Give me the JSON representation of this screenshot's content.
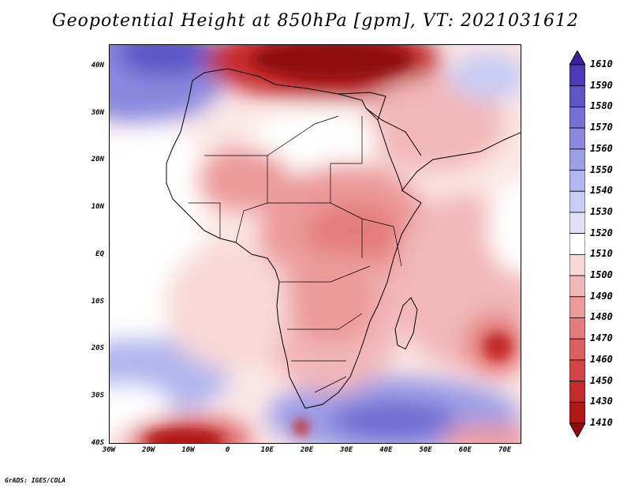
{
  "title": "Geopotential Height at 850hPa [gpm], VT: 2021031612",
  "credit": "GrADS: IGES/COLA",
  "map": {
    "lat_labels": [
      "40N",
      "30N",
      "20N",
      "10N",
      "EQ",
      "10S",
      "20S",
      "30S",
      "40S"
    ],
    "lon_labels": [
      "30W",
      "20W",
      "10W",
      "0",
      "10E",
      "20E",
      "30E",
      "40E",
      "50E",
      "60E",
      "70E"
    ]
  },
  "colorbar": {
    "levels": [
      "1610",
      "1590",
      "1580",
      "1570",
      "1560",
      "1550",
      "1540",
      "1530",
      "1520",
      "1510",
      "1500",
      "1490",
      "1480",
      "1470",
      "1460",
      "1450",
      "1430",
      "1410"
    ],
    "colors": [
      "#3a1fa0",
      "#4c3ab8",
      "#5f55c8",
      "#7470d4",
      "#8987de",
      "#9e9ee6",
      "#b3b5ee",
      "#c8cbf4",
      "#dfe0f8",
      "#ffffff",
      "#f8d8d8",
      "#f2b8b8",
      "#ec9a9a",
      "#e47c7c",
      "#dc5e5e",
      "#d34444",
      "#c42c2c",
      "#b01818",
      "#8e0c0c"
    ]
  }
}
